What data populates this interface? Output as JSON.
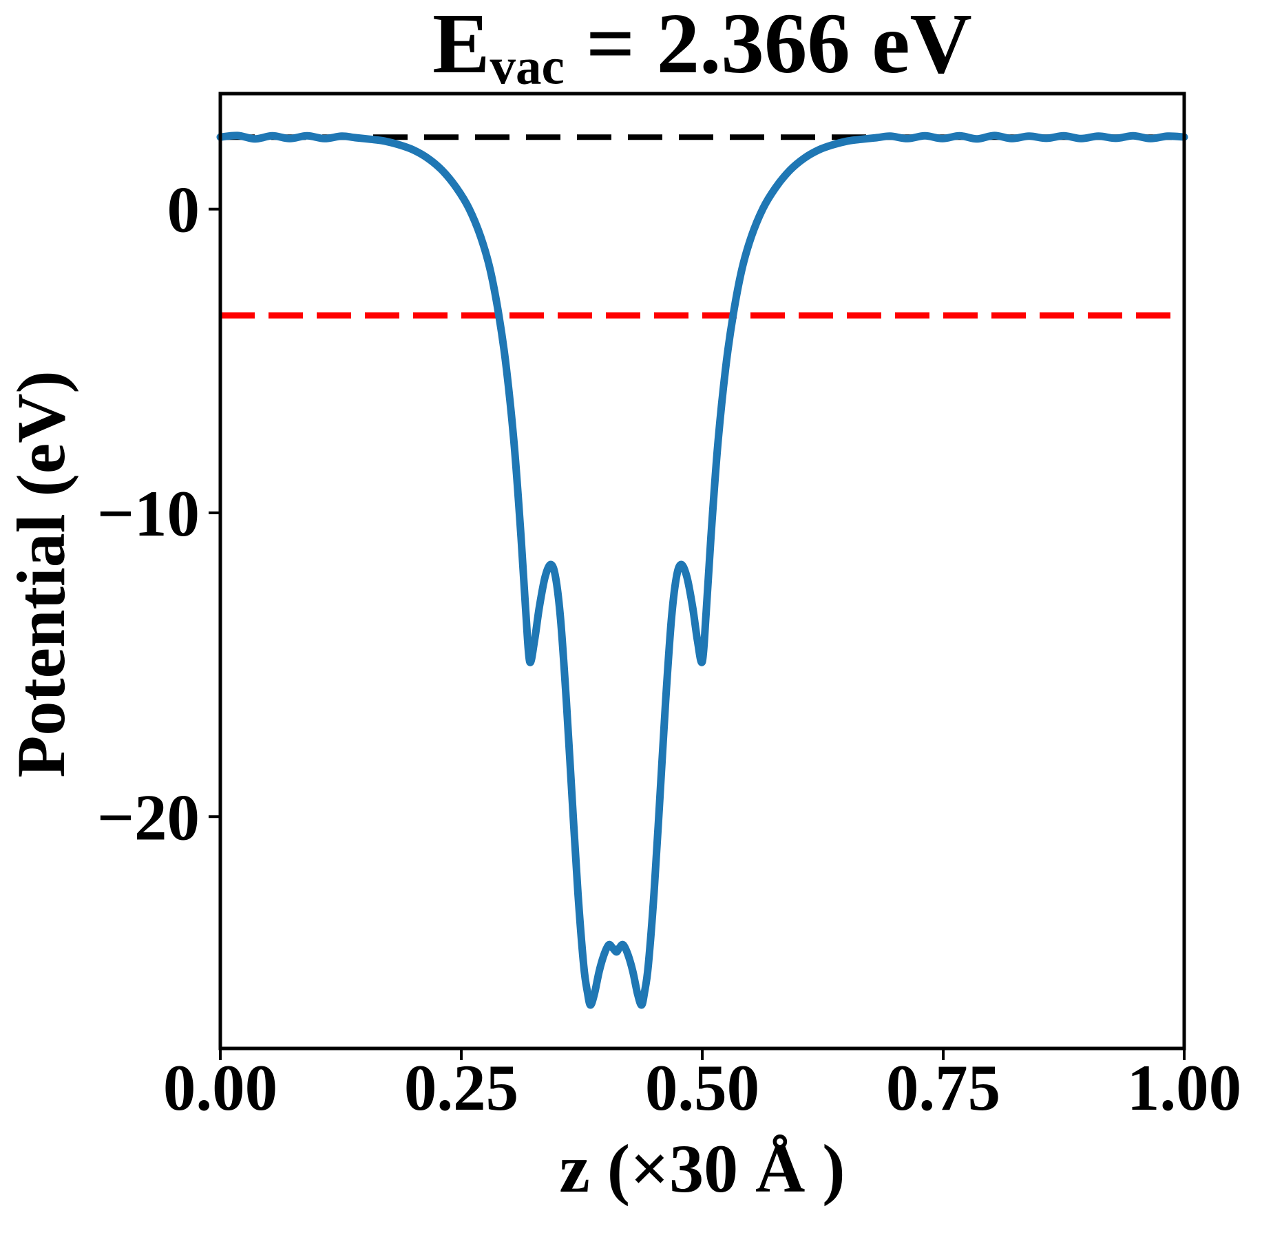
{
  "figure": {
    "title": {
      "prefix": "E",
      "subscript": "vac",
      "suffix": " = 2.366 eV"
    },
    "background": "#ffffff",
    "accent_blue": "#1f77b4",
    "accent_red": "#ff0000"
  },
  "chart_data": {
    "type": "line",
    "title": "E_vac = 2.366 eV",
    "xlabel": "z (×30 Å )",
    "ylabel": "Potential (eV)",
    "xlim": [
      0,
      1
    ],
    "ylim": [
      -27.63,
      3.8
    ],
    "grid": false,
    "legend": "none",
    "x_ticks": [
      {
        "v": 0.0,
        "label": "0.00"
      },
      {
        "v": 0.25,
        "label": "0.25"
      },
      {
        "v": 0.5,
        "label": "0.50"
      },
      {
        "v": 0.75,
        "label": "0.75"
      },
      {
        "v": 1.0,
        "label": "1.00"
      }
    ],
    "y_ticks": [
      {
        "v": 0,
        "label": "0"
      },
      {
        "v": -10,
        "label": "−10"
      },
      {
        "v": -20,
        "label": "−20"
      }
    ],
    "reference_lines": [
      {
        "name": "vacuum-level-line",
        "y": 2.366,
        "color": "#000000",
        "style": "dashed",
        "width": 8,
        "dash": [
          50,
          24
        ]
      },
      {
        "name": "fermi-level-line",
        "y": -3.5,
        "color": "#ff0000",
        "style": "dashed",
        "width": 9,
        "dash": [
          50,
          20
        ]
      }
    ],
    "series": [
      {
        "name": "planar-averaged-potential",
        "color": "#1f77b4",
        "style": "solid",
        "width": 11,
        "points": [
          [
            0.0,
            2.37
          ],
          [
            0.018,
            2.42
          ],
          [
            0.036,
            2.31
          ],
          [
            0.054,
            2.41
          ],
          [
            0.072,
            2.32
          ],
          [
            0.09,
            2.41
          ],
          [
            0.108,
            2.32
          ],
          [
            0.126,
            2.4
          ],
          [
            0.14,
            2.35
          ],
          [
            0.155,
            2.3
          ],
          [
            0.17,
            2.24
          ],
          [
            0.185,
            2.12
          ],
          [
            0.2,
            1.95
          ],
          [
            0.215,
            1.68
          ],
          [
            0.23,
            1.28
          ],
          [
            0.245,
            0.7
          ],
          [
            0.258,
            0.02
          ],
          [
            0.27,
            -0.9
          ],
          [
            0.28,
            -2.0
          ],
          [
            0.289,
            -3.5
          ],
          [
            0.297,
            -5.3
          ],
          [
            0.305,
            -7.8
          ],
          [
            0.312,
            -10.8
          ],
          [
            0.317,
            -13.3
          ],
          [
            0.321,
            -14.9
          ],
          [
            0.326,
            -14.2
          ],
          [
            0.331,
            -13.1
          ],
          [
            0.337,
            -12.1
          ],
          [
            0.343,
            -11.7
          ],
          [
            0.348,
            -12.15
          ],
          [
            0.353,
            -13.5
          ],
          [
            0.359,
            -16.2
          ],
          [
            0.365,
            -19.4
          ],
          [
            0.371,
            -22.5
          ],
          [
            0.377,
            -24.9
          ],
          [
            0.381,
            -25.8
          ],
          [
            0.384,
            -26.2
          ],
          [
            0.388,
            -25.85
          ],
          [
            0.393,
            -25.1
          ],
          [
            0.398,
            -24.55
          ],
          [
            0.403,
            -24.22
          ],
          [
            0.407,
            -24.32
          ],
          [
            0.411,
            -24.45
          ],
          [
            0.414,
            -24.32
          ],
          [
            0.418,
            -24.22
          ],
          [
            0.423,
            -24.55
          ],
          [
            0.428,
            -25.1
          ],
          [
            0.433,
            -25.85
          ],
          [
            0.437,
            -26.2
          ],
          [
            0.44,
            -25.8
          ],
          [
            0.444,
            -24.9
          ],
          [
            0.45,
            -22.5
          ],
          [
            0.456,
            -19.4
          ],
          [
            0.462,
            -16.2
          ],
          [
            0.468,
            -13.5
          ],
          [
            0.473,
            -12.15
          ],
          [
            0.478,
            -11.7
          ],
          [
            0.484,
            -12.1
          ],
          [
            0.49,
            -13.1
          ],
          [
            0.495,
            -14.2
          ],
          [
            0.5,
            -14.9
          ],
          [
            0.504,
            -13.3
          ],
          [
            0.509,
            -10.8
          ],
          [
            0.516,
            -7.8
          ],
          [
            0.524,
            -5.3
          ],
          [
            0.532,
            -3.5
          ],
          [
            0.541,
            -2.0
          ],
          [
            0.551,
            -0.9
          ],
          [
            0.563,
            0.02
          ],
          [
            0.576,
            0.7
          ],
          [
            0.591,
            1.28
          ],
          [
            0.606,
            1.68
          ],
          [
            0.621,
            1.95
          ],
          [
            0.636,
            2.12
          ],
          [
            0.651,
            2.24
          ],
          [
            0.666,
            2.3
          ],
          [
            0.681,
            2.35
          ],
          [
            0.695,
            2.4
          ],
          [
            0.713,
            2.32
          ],
          [
            0.731,
            2.41
          ],
          [
            0.749,
            2.32
          ],
          [
            0.767,
            2.41
          ],
          [
            0.785,
            2.31
          ],
          [
            0.803,
            2.42
          ],
          [
            0.821,
            2.32
          ],
          [
            0.839,
            2.4
          ],
          [
            0.857,
            2.33
          ],
          [
            0.875,
            2.41
          ],
          [
            0.893,
            2.32
          ],
          [
            0.911,
            2.4
          ],
          [
            0.929,
            2.33
          ],
          [
            0.947,
            2.41
          ],
          [
            0.965,
            2.32
          ],
          [
            0.983,
            2.4
          ],
          [
            1.0,
            2.37
          ]
        ]
      }
    ]
  }
}
